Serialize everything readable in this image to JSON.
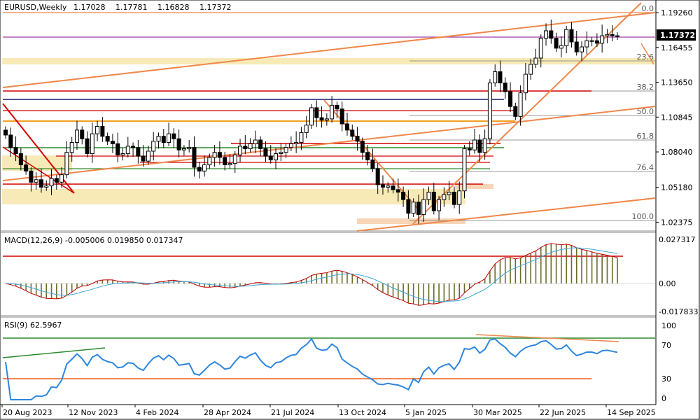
{
  "header": {
    "symbol": "EURUSD,Weekly",
    "open": "1.17028",
    "high": "1.17781",
    "low": "1.16828",
    "close": "1.17372"
  },
  "current_price_label": "1.17372",
  "colors": {
    "bull": "#ffffff",
    "bear": "#000000",
    "trend_orange": "#f0874a",
    "red_line": "#d40000",
    "navy_line": "#1a1a6e",
    "green_line": "#2d8a2d",
    "yellow_zone": "#f8eab6",
    "macd_signal": "#c00000",
    "macd_line": "#3aa7d6",
    "rsi_line": "#2e86de"
  },
  "price_axis": {
    "ticks": [
      "1.19260",
      "1.16455",
      "1.13650",
      "1.10845",
      "1.08040",
      "1.05180",
      "1.02375"
    ]
  },
  "fib_levels": [
    "0.0",
    "23.6",
    "38.2",
    "50.0",
    "61.8",
    "76.4",
    "100.0"
  ],
  "macd": {
    "label": "MACD(12,26,9) -0.005006 0.019850 0.017347",
    "ticks": [
      "0.027317",
      "0.00",
      "-0.017833"
    ]
  },
  "rsi": {
    "label": "RSI(9) 62.5967",
    "ticks": [
      "100",
      "70",
      "30",
      "0"
    ]
  },
  "time_axis": [
    "20 Aug 2023",
    "12 Nov 2023",
    "4 Feb 2024",
    "28 Apr 2024",
    "21 Jul 2024",
    "13 Oct 2024",
    "5 Jan 2025",
    "30 Mar 2025",
    "22 Jun 2025",
    "14 Sep 2025"
  ],
  "chart_data": {
    "type": "candlestick",
    "title": "EURUSD,Weekly",
    "ylim": [
      1.0195,
      1.2
    ],
    "close": [
      1.094,
      1.084,
      1.079,
      1.07,
      1.065,
      1.056,
      1.058,
      1.052,
      1.053,
      1.059,
      1.056,
      1.062,
      1.08,
      1.088,
      1.098,
      1.091,
      1.079,
      1.095,
      1.101,
      1.093,
      1.089,
      1.087,
      1.078,
      1.079,
      1.085,
      1.084,
      1.077,
      1.073,
      1.081,
      1.089,
      1.093,
      1.088,
      1.095,
      1.091,
      1.082,
      1.083,
      1.084,
      1.068,
      1.065,
      1.07,
      1.076,
      1.08,
      1.076,
      1.07,
      1.071,
      1.078,
      1.085,
      1.083,
      1.087,
      1.09,
      1.083,
      1.077,
      1.074,
      1.079,
      1.08,
      1.084,
      1.087,
      1.088,
      1.096,
      1.102,
      1.116,
      1.108,
      1.106,
      1.107,
      1.118,
      1.115,
      1.103,
      1.098,
      1.093,
      1.089,
      1.08,
      1.074,
      1.067,
      1.054,
      1.052,
      1.053,
      1.05,
      1.048,
      1.042,
      1.031,
      1.04,
      1.03,
      1.042,
      1.048,
      1.033,
      1.042,
      1.046,
      1.048,
      1.038,
      1.049,
      1.083,
      1.082,
      1.09,
      1.08,
      1.091,
      1.136,
      1.145,
      1.136,
      1.129,
      1.117,
      1.109,
      1.128,
      1.143,
      1.151,
      1.156,
      1.172,
      1.178,
      1.172,
      1.164,
      1.166,
      1.179,
      1.169,
      1.161,
      1.165,
      1.17,
      1.17,
      1.168,
      1.174,
      1.175,
      1.174,
      1.1737
    ],
    "rsi_value": 62.5967,
    "macd_values": {
      "main": -0.005006,
      "signal": 0.01985,
      "histogram": 0.017347
    }
  }
}
